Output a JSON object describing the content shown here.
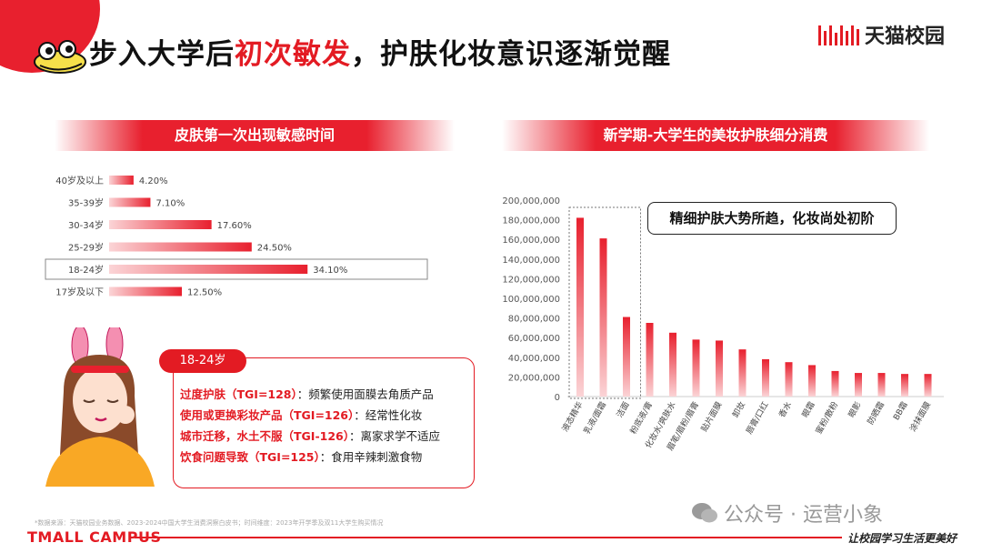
{
  "header": {
    "title_pre": "步入大学后",
    "title_highlight": "初次敏发",
    "title_post": "，护肤化妆意识逐渐觉醒",
    "brand": "天猫校园"
  },
  "left_panel": {
    "section_title": "皮肤第一次出现敏感时间"
  },
  "persona": {
    "tag": "18-24岁",
    "items": [
      {
        "key": "过度护肤（TGI=128）",
        "desc": "：频繁使用面膜去角质产品"
      },
      {
        "key": "使用或更换彩妆产品（TGI=126）",
        "desc": "：经常性化妆"
      },
      {
        "key": "城市迁移，水土不服（TGI-126）",
        "desc": "：离家求学不适应"
      },
      {
        "key": "饮食问题导致（TGI=125）",
        "desc": "：食用辛辣刺激食物"
      }
    ]
  },
  "right_panel": {
    "section_title": "新学期-大学生的美妆护肤细分消费",
    "callout": "精细护肤大势所趋，化妆尚处初阶"
  },
  "chart_data": [
    {
      "type": "bar",
      "orientation": "horizontal",
      "title": "皮肤第一次出现敏感时间",
      "categories": [
        "40岁及以上",
        "35-39岁",
        "30-34岁",
        "25-29岁",
        "18-24岁",
        "17岁及以下"
      ],
      "values": [
        4.2,
        7.1,
        17.6,
        24.5,
        34.1,
        12.5
      ],
      "value_labels": [
        "4.20%",
        "7.10%",
        "17.60%",
        "24.50%",
        "34.10%",
        "12.50%"
      ],
      "highlight": "18-24岁",
      "colors": {
        "bar": "#e8202e",
        "highlight_box": "#888888"
      }
    },
    {
      "type": "bar",
      "title": "新学期-大学生的美妆护肤细分消费",
      "categories": [
        "液态精华",
        "乳液/面霜",
        "洁面",
        "粉底液/膏",
        "化妆水/爽肤水",
        "眉笔/眉粉/眉膏",
        "贴片面膜",
        "卸妆",
        "唇膏/口红",
        "香水",
        "眼霜",
        "蜜粉/散粉",
        "眼影",
        "防晒霜",
        "BB霜",
        "涂抹面膜"
      ],
      "values": [
        182000000,
        161000000,
        81000000,
        75000000,
        65000000,
        58000000,
        57000000,
        48000000,
        38000000,
        35000000,
        32000000,
        26000000,
        24000000,
        24000000,
        23000000,
        23000000
      ],
      "ylim": [
        0,
        200000000
      ],
      "yticks": [
        "0",
        "20,000,000",
        "40,000,000",
        "60,000,000",
        "80,000,000",
        "100,000,000",
        "120,000,000",
        "140,000,000",
        "160,000,000",
        "180,000,000",
        "200,000,000"
      ],
      "highlight": [
        "液态精华",
        "乳液/面霜",
        "洁面"
      ],
      "colors": {
        "bar": "#e8202e",
        "axis": "#cccccc"
      }
    }
  ],
  "footer": {
    "source": "*数据来源：天猫校园业务数据、2023-2024中国大学生消费洞察白皮书；时间维度：2023年开学季及双11大学生购买情况",
    "left": "TMALL CAMPUS",
    "right": "让校园学习生活更美好",
    "watermark": "公众号 · 运营小象"
  }
}
